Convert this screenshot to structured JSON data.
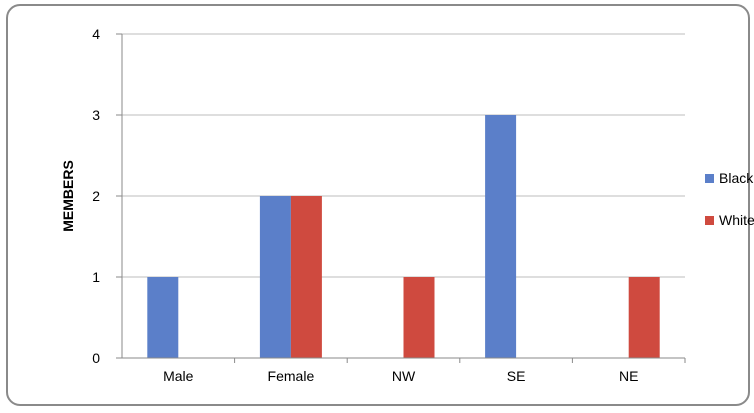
{
  "chart_data": {
    "type": "bar",
    "categories": [
      "Male",
      "Female",
      "NW",
      "SE",
      "NE"
    ],
    "series": [
      {
        "name": "Black",
        "values": [
          1,
          2,
          0,
          3,
          0
        ],
        "color": "#5b7fc9"
      },
      {
        "name": "White",
        "values": [
          0,
          2,
          1,
          0,
          1
        ],
        "color": "#cf4a3f"
      }
    ],
    "title": "",
    "xlabel": "",
    "ylabel": "MEMBERS",
    "ylim": [
      0,
      4
    ],
    "yticks": [
      "0",
      "1",
      "2",
      "3",
      "4"
    ],
    "grid": true,
    "legend_position": "right"
  }
}
